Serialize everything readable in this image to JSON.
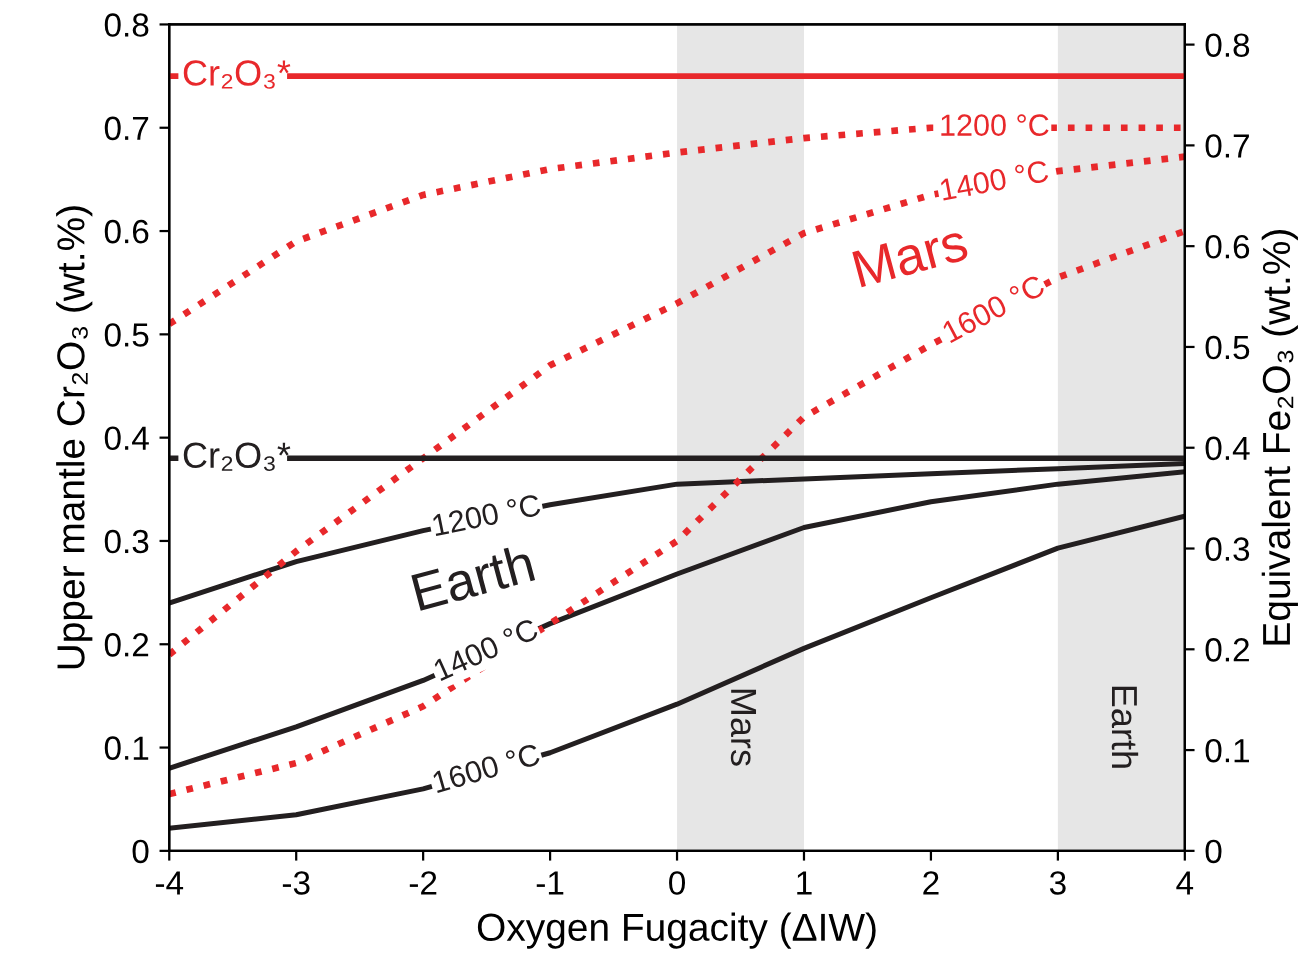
{
  "chart_data": {
    "type": "line",
    "xlabel": "Oxygen Fugacity (ΔIW)",
    "ylabel": "Upper mantle Cr₂O₃ (wt.%)",
    "y2label": "Equivalent Fe₂O₃ (wt.%)",
    "x": [
      -4,
      -3,
      -2,
      -1,
      0,
      1,
      2,
      3,
      4
    ],
    "series": [
      {
        "name": "1200 °C",
        "color": "#231f20",
        "line_style": "solid",
        "values": [
          0.24,
          0.28,
          0.31,
          0.335,
          0.355,
          0.36,
          0.365,
          0.37,
          0.375
        ]
      },
      {
        "name": "1400 °C",
        "color": "#231f20",
        "line_style": "solid",
        "values": [
          0.08,
          0.12,
          0.165,
          0.22,
          0.268,
          0.313,
          0.338,
          0.355,
          0.367
        ]
      },
      {
        "name": "1600 °C",
        "color": "#231f20",
        "line_style": "solid",
        "values": [
          0.022,
          0.035,
          0.06,
          0.095,
          0.142,
          0.196,
          0.245,
          0.293,
          0.324
        ]
      },
      {
        "name": "1200 °C",
        "color": "#e8282b",
        "line_style": "dotted",
        "values": [
          0.51,
          0.59,
          0.635,
          0.66,
          0.676,
          0.69,
          0.7,
          0.7,
          0.7
        ]
      },
      {
        "name": "1400 °C",
        "color": "#e8282b",
        "line_style": "dotted",
        "values": [
          0.19,
          0.29,
          0.38,
          0.47,
          0.53,
          0.598,
          0.635,
          0.658,
          0.672
        ]
      },
      {
        "name": "1600 °C",
        "color": "#e8282b",
        "line_style": "dotted",
        "values": [
          0.055,
          0.085,
          0.14,
          0.22,
          0.3,
          0.42,
          0.49,
          0.555,
          0.6
        ]
      }
    ],
    "ref_lines": [
      {
        "axis": "y",
        "value": 0.75,
        "label": "Cr₂O₃*",
        "color": "#e8282b"
      },
      {
        "axis": "y",
        "value": 0.38,
        "label": "Cr₂O₃*",
        "color": "#231f20"
      }
    ],
    "bands": [
      {
        "axis": "x",
        "from": 0,
        "to": 1,
        "label": "Mars",
        "color": "#e6e6e6"
      },
      {
        "axis": "x",
        "from": 3,
        "to": 4,
        "label": "Earth",
        "color": "#e6e6e6"
      }
    ],
    "annotations": [
      "Earth",
      "Mars"
    ],
    "xlim": [
      -4,
      4
    ],
    "xticks": [
      -4,
      -3,
      -2,
      -1,
      0,
      1,
      2,
      3,
      4
    ],
    "ylim": [
      0,
      0.8
    ],
    "yticks": [
      0,
      0.1,
      0.2,
      0.3,
      0.4,
      0.5,
      0.6,
      0.7,
      0.8
    ],
    "y2lim": [
      0,
      0.82
    ],
    "y2ticks": [
      0,
      0.1,
      0.2,
      0.3,
      0.4,
      0.5,
      0.6,
      0.7,
      0.8
    ],
    "grid": false,
    "legend": false
  }
}
